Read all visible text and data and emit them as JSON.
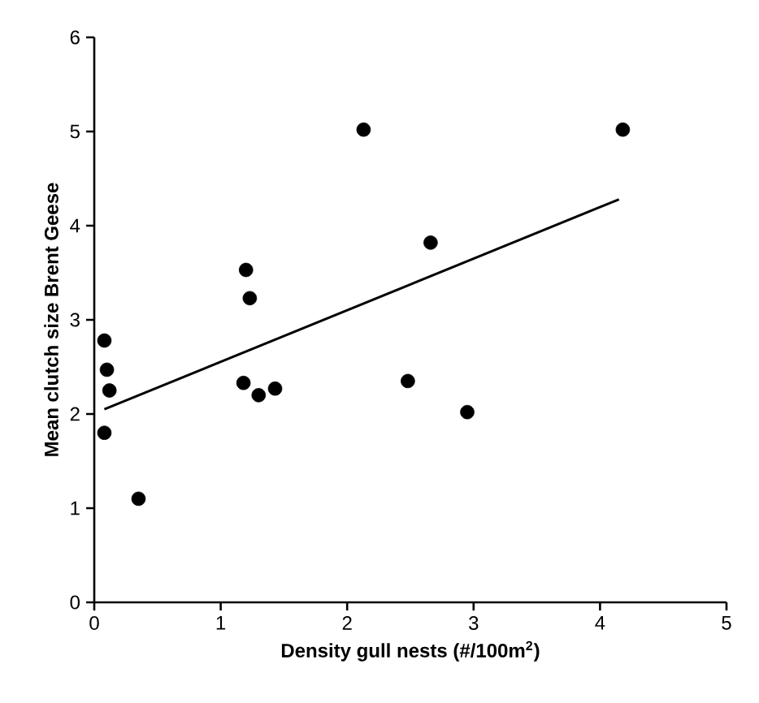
{
  "chart_data": {
    "type": "scatter",
    "xlabel": "Density gull nests (#/100m$^{2}$)",
    "ylabel": "Mean clutch size Brent Geese",
    "xlim": [
      0,
      5
    ],
    "ylim": [
      0,
      6
    ],
    "xticks": [
      0,
      1,
      2,
      3,
      4,
      5
    ],
    "yticks": [
      0,
      1,
      2,
      3,
      4,
      5,
      6
    ],
    "grid": false,
    "series": [
      {
        "color": "#000000",
        "marker": "circle",
        "x": [
          0.08,
          0.1,
          0.12,
          0.08,
          0.35,
          1.18,
          1.2,
          1.23,
          1.3,
          1.43,
          2.13,
          2.48,
          2.66,
          2.95,
          4.18
        ],
        "values": [
          2.78,
          2.47,
          2.25,
          1.8,
          1.1,
          2.33,
          3.53,
          3.23,
          2.2,
          2.27,
          5.02,
          2.35,
          3.82,
          2.02,
          5.02
        ]
      },
      {
        "type": "line",
        "color": "#000000",
        "marker": "none",
        "x": [
          0.08,
          4.15
        ],
        "values": [
          2.05,
          4.28
        ]
      }
    ]
  }
}
